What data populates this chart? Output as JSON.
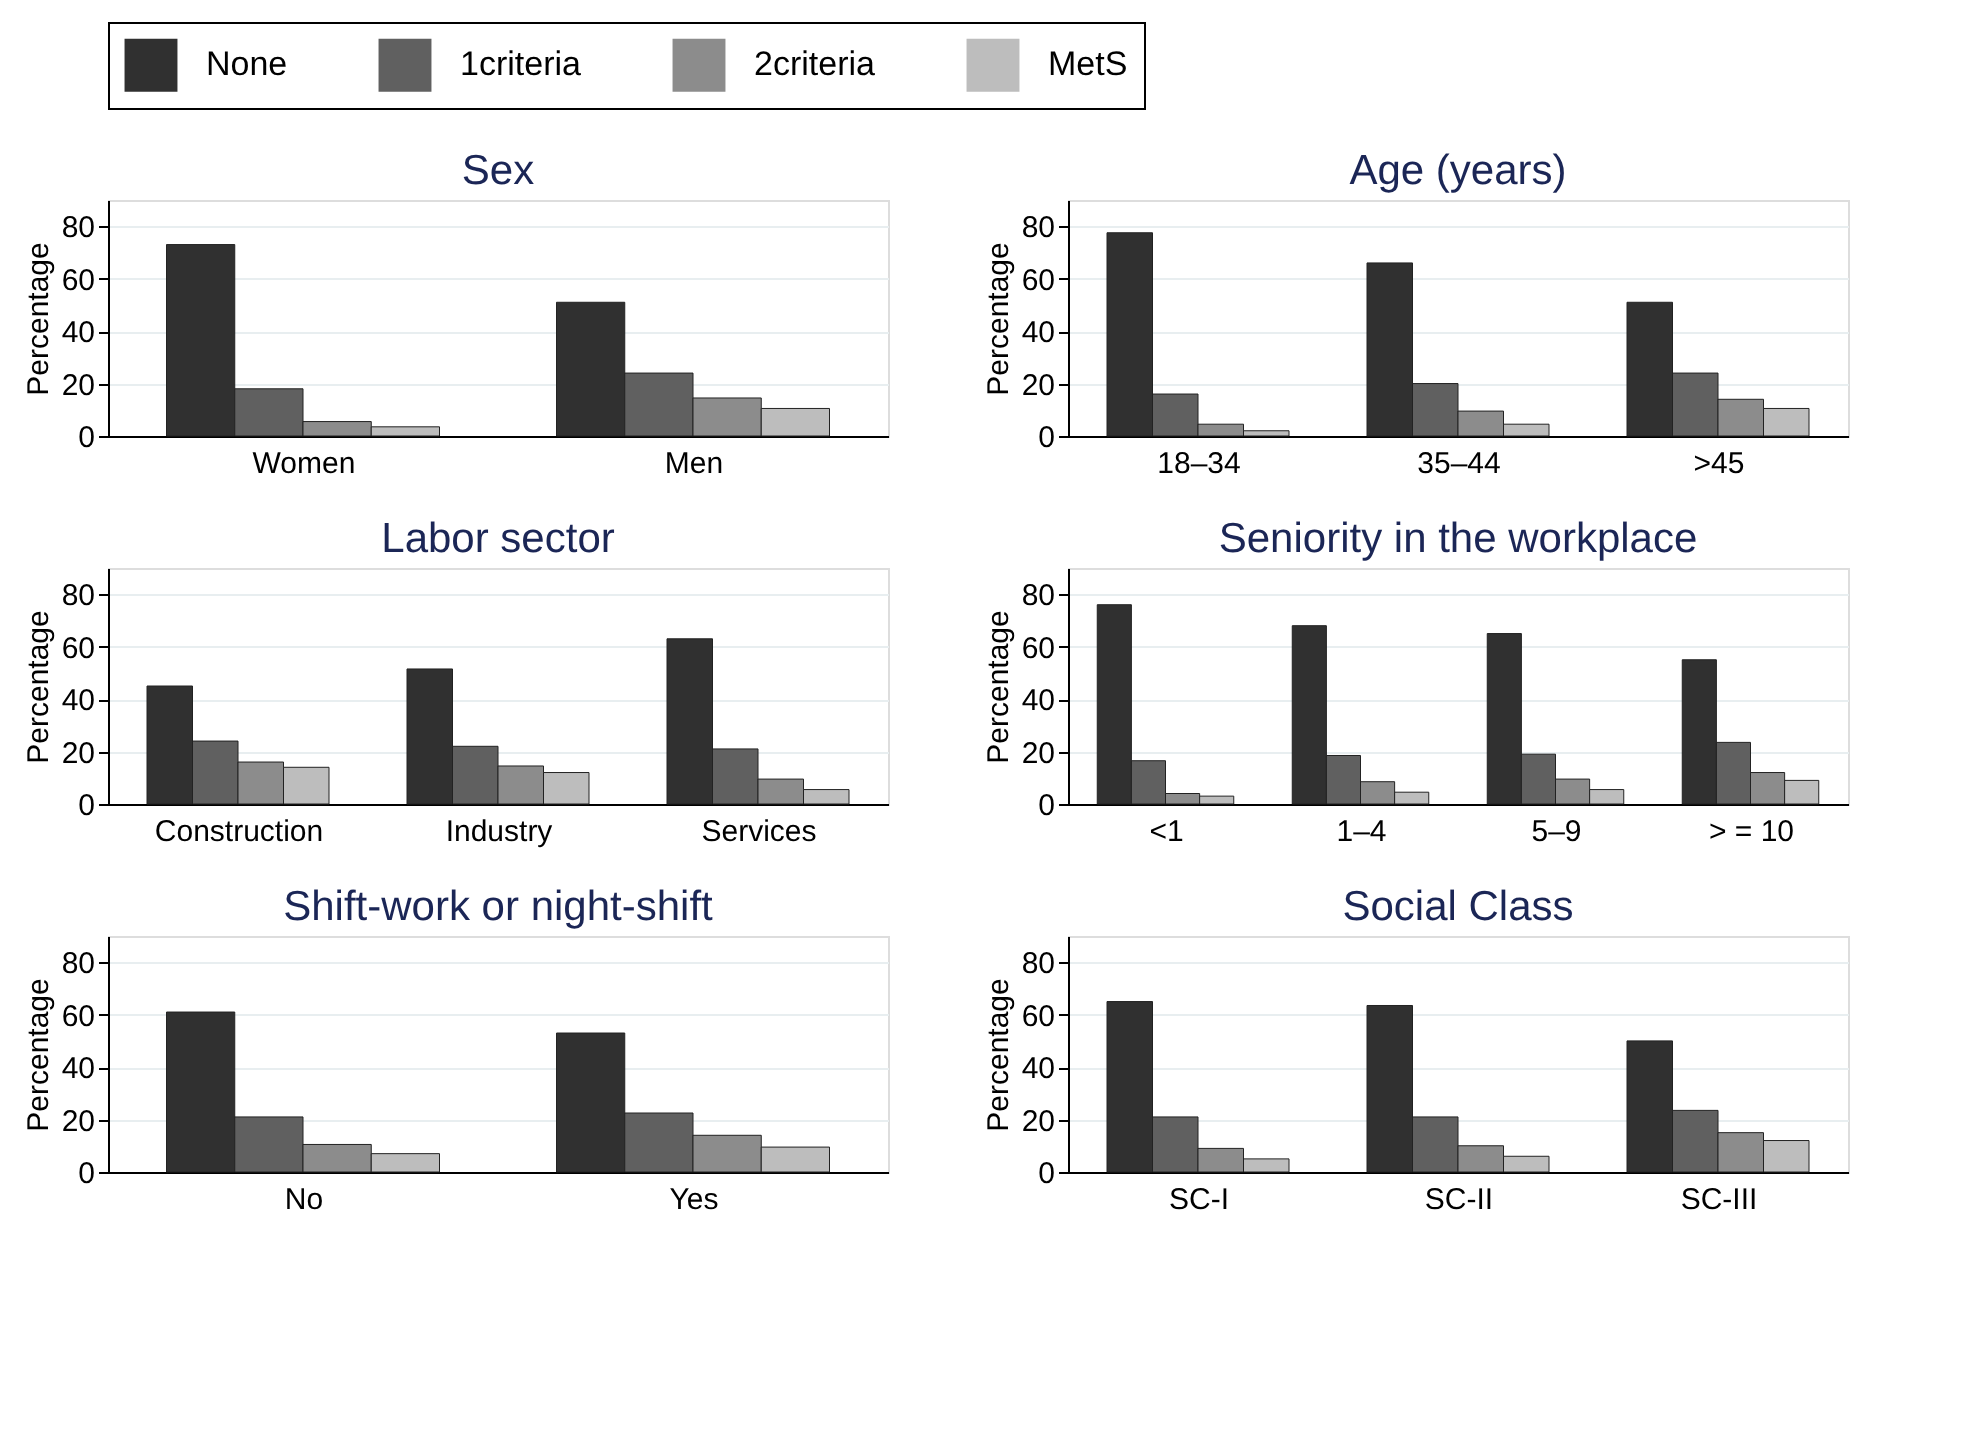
{
  "chart_data": [
    {
      "type": "bar",
      "title": "Sex",
      "ylabel": "Percentage",
      "categories": [
        "Women",
        "Men"
      ],
      "ylim": [
        0,
        90
      ],
      "yticks": [
        0,
        20,
        40,
        60,
        80
      ],
      "grid": "y",
      "legend": "top",
      "series": [
        {
          "name": "None",
          "color": "#303030",
          "values": [
            73,
            51
          ]
        },
        {
          "name": "1criteria",
          "color": "#606060",
          "values": [
            18,
            24
          ]
        },
        {
          "name": "2criteria",
          "color": "#8c8c8c",
          "values": [
            5.5,
            14.5
          ]
        },
        {
          "name": "MetS",
          "color": "#bdbdbd",
          "values": [
            3.5,
            10.5
          ]
        }
      ]
    },
    {
      "type": "bar",
      "title": "Age (years)",
      "ylabel": "Percentage",
      "categories": [
        "18–34",
        "35–44",
        ">45"
      ],
      "ylim": [
        0,
        90
      ],
      "yticks": [
        0,
        20,
        40,
        60,
        80
      ],
      "grid": "y",
      "series": [
        {
          "name": "None",
          "color": "#303030",
          "values": [
            77.5,
            66,
            51
          ]
        },
        {
          "name": "1criteria",
          "color": "#606060",
          "values": [
            16,
            20,
            24
          ]
        },
        {
          "name": "2criteria",
          "color": "#8c8c8c",
          "values": [
            4.5,
            9.5,
            14
          ]
        },
        {
          "name": "MetS",
          "color": "#bdbdbd",
          "values": [
            2,
            4.5,
            10.5
          ]
        }
      ]
    },
    {
      "type": "bar",
      "title": "Labor sector",
      "ylabel": "Percentage",
      "categories": [
        "Construction",
        "Industry",
        "Services"
      ],
      "ylim": [
        0,
        90
      ],
      "yticks": [
        0,
        20,
        40,
        60,
        80
      ],
      "grid": "y",
      "series": [
        {
          "name": "None",
          "color": "#303030",
          "values": [
            45,
            51.5,
            63
          ]
        },
        {
          "name": "1criteria",
          "color": "#606060",
          "values": [
            24,
            22,
            21
          ]
        },
        {
          "name": "2criteria",
          "color": "#8c8c8c",
          "values": [
            16,
            14.5,
            9.5
          ]
        },
        {
          "name": "MetS",
          "color": "#bdbdbd",
          "values": [
            14,
            12,
            5.5
          ]
        }
      ]
    },
    {
      "type": "bar",
      "title": "Seniority in the workplace",
      "ylabel": "Percentage",
      "categories": [
        "<1",
        "1–4",
        "5–9",
        "> = 10"
      ],
      "ylim": [
        0,
        90
      ],
      "yticks": [
        0,
        20,
        40,
        60,
        80
      ],
      "grid": "y",
      "series": [
        {
          "name": "None",
          "color": "#303030",
          "values": [
            76,
            68,
            65,
            55
          ]
        },
        {
          "name": "1criteria",
          "color": "#606060",
          "values": [
            16.5,
            18.5,
            19,
            23.5
          ]
        },
        {
          "name": "2criteria",
          "color": "#8c8c8c",
          "values": [
            4,
            8.5,
            9.5,
            12
          ]
        },
        {
          "name": "MetS",
          "color": "#bdbdbd",
          "values": [
            3,
            4.5,
            5.5,
            9
          ]
        }
      ]
    },
    {
      "type": "bar",
      "title": "Shift-work or night-shift",
      "ylabel": "Percentage",
      "categories": [
        "No",
        "Yes"
      ],
      "ylim": [
        0,
        90
      ],
      "yticks": [
        0,
        20,
        40,
        60,
        80
      ],
      "grid": "y",
      "series": [
        {
          "name": "None",
          "color": "#303030",
          "values": [
            61,
            53
          ]
        },
        {
          "name": "1criteria",
          "color": "#606060",
          "values": [
            21,
            22.5
          ]
        },
        {
          "name": "2criteria",
          "color": "#8c8c8c",
          "values": [
            10.5,
            14
          ]
        },
        {
          "name": "MetS",
          "color": "#bdbdbd",
          "values": [
            7,
            9.5
          ]
        }
      ]
    },
    {
      "type": "bar",
      "title": "Social Class",
      "ylabel": "Percentage",
      "categories": [
        "SC-I",
        "SC-II",
        "SC-III"
      ],
      "ylim": [
        0,
        90
      ],
      "yticks": [
        0,
        20,
        40,
        60,
        80
      ],
      "grid": "y",
      "series": [
        {
          "name": "None",
          "color": "#303030",
          "values": [
            65,
            63.5,
            50
          ]
        },
        {
          "name": "1criteria",
          "color": "#606060",
          "values": [
            21,
            21,
            23.5
          ]
        },
        {
          "name": "2criteria",
          "color": "#8c8c8c",
          "values": [
            9,
            10,
            15
          ]
        },
        {
          "name": "MetS",
          "color": "#bdbdbd",
          "values": [
            5,
            6,
            12
          ]
        }
      ]
    }
  ]
}
